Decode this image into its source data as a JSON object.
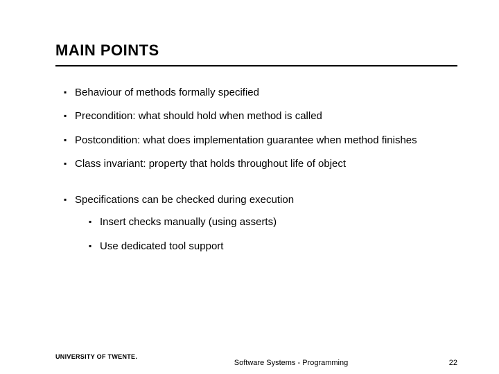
{
  "title": "MAIN POINTS",
  "bullets": [
    {
      "text": "Behaviour of methods formally specified"
    },
    {
      "text": "Precondition: what should hold when method is called"
    },
    {
      "text": "Postcondition: what does implementation guarantee when method finishes"
    },
    {
      "text": "Class invariant: property that holds throughout life of object"
    },
    {
      "text": "Specifications can be checked during execution",
      "sub": [
        {
          "text": "Insert checks manually (using asserts)"
        },
        {
          "text": "Use dedicated tool support"
        }
      ]
    }
  ],
  "footer": {
    "logo": "UNIVERSITY OF TWENTE.",
    "center": "Software Systems - Programming",
    "page": "22"
  },
  "style": {
    "background": "#ffffff",
    "text_color": "#000000",
    "title_fontsize": 22,
    "body_fontsize": 15,
    "footer_fontsize": 11,
    "rule_color": "#000000"
  }
}
